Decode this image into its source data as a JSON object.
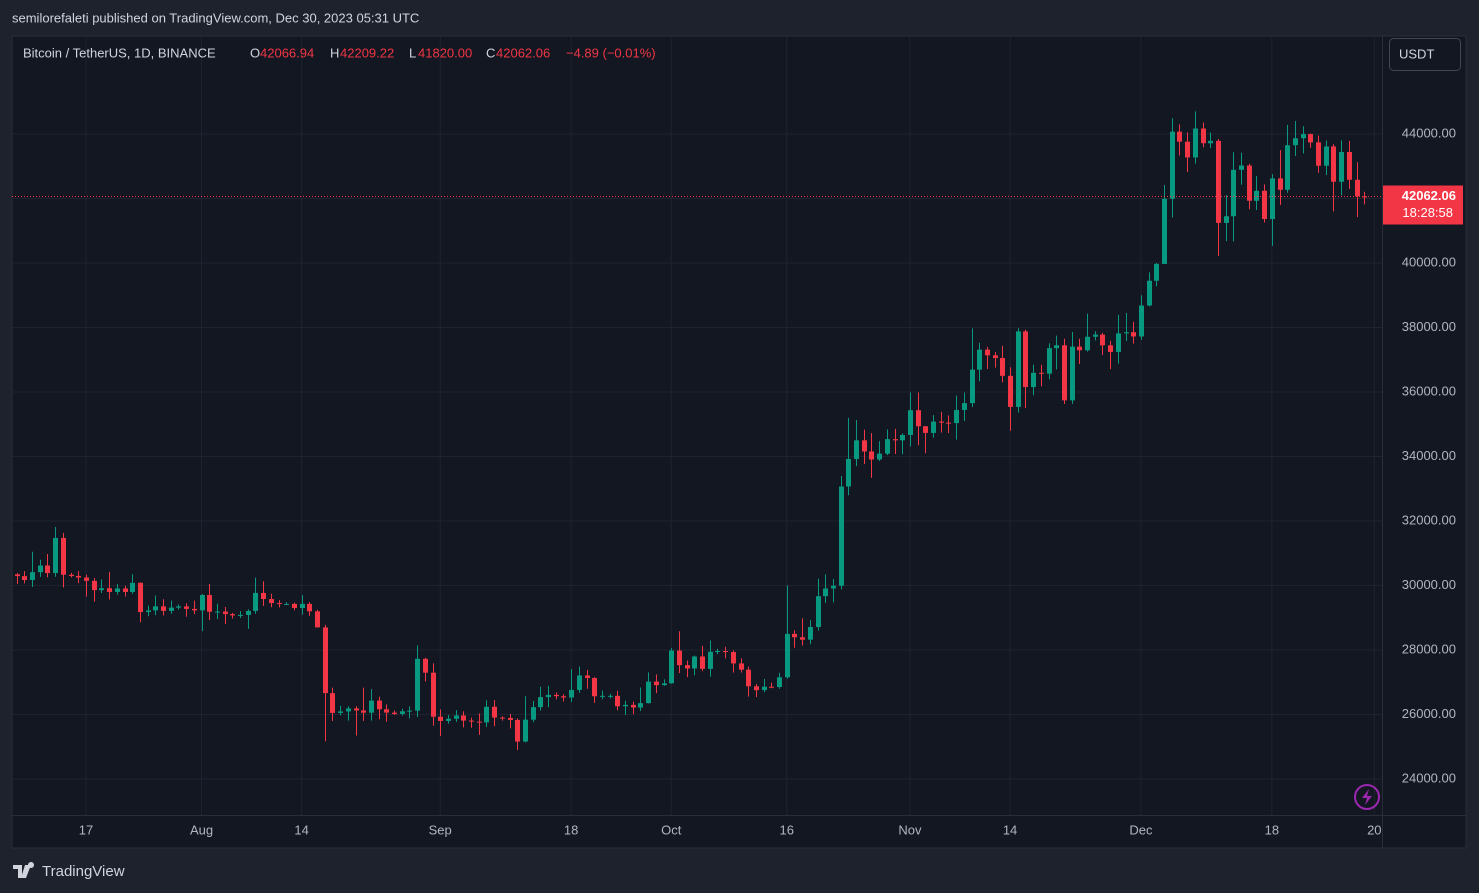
{
  "header": {
    "publisher": "semilorefaleti published on TradingView.com, Dec 30, 2023 05:31 UTC"
  },
  "chart_data": {
    "type": "candlestick",
    "title": "Bitcoin / TetherUS, 1D, BINANCE",
    "ohlc_legend": {
      "o_label": "O",
      "open": "42066.94",
      "h_label": "H",
      "high": "42209.22",
      "l_label": "L",
      "low": "41820.00",
      "c_label": "C",
      "close": "42062.06",
      "change": "−4.89 (−0.01%)"
    },
    "currency": "USDT",
    "last_price_label": "42062.06",
    "countdown": "18:28:58",
    "up_color": "#089981",
    "down_color": "#f23645",
    "grid": true,
    "xlim": [
      -0.61,
      177.3
    ],
    "xticks": [
      {
        "value": 9,
        "label": "17"
      },
      {
        "value": 24,
        "label": "Aug"
      },
      {
        "value": 37,
        "label": "14"
      },
      {
        "value": 55,
        "label": "Sep"
      },
      {
        "value": 72,
        "label": "18"
      },
      {
        "value": 85,
        "label": "Oct"
      },
      {
        "value": 100,
        "label": "16"
      },
      {
        "value": 116,
        "label": "Nov"
      },
      {
        "value": 129,
        "label": "14"
      },
      {
        "value": 146,
        "label": "Dec"
      },
      {
        "value": 163,
        "label": "18"
      },
      {
        "value": 176.3,
        "label": "20"
      }
    ],
    "ylim": [
      22884,
      47039
    ],
    "yticks": [
      {
        "value": 24000,
        "label": "24000.00"
      },
      {
        "value": 26000,
        "label": "26000.00"
      },
      {
        "value": 28000,
        "label": "28000.00"
      },
      {
        "value": 30000,
        "label": "30000.00"
      },
      {
        "value": 32000,
        "label": "32000.00"
      },
      {
        "value": 34000,
        "label": "34000.00"
      },
      {
        "value": 36000,
        "label": "36000.00"
      },
      {
        "value": 38000,
        "label": "38000.00"
      },
      {
        "value": 40000,
        "label": "40000.00"
      },
      {
        "value": 42000,
        "label": "42000.00"
      },
      {
        "value": 44000,
        "label": "44000.00"
      }
    ],
    "ohlc": [
      [
        30346,
        30384,
        30050,
        30292
      ],
      [
        30292,
        30445,
        30065,
        30171
      ],
      [
        30171,
        31045,
        29955,
        30414
      ],
      [
        30414,
        30800,
        30268,
        30620
      ],
      [
        30620,
        30977,
        30254,
        30385
      ],
      [
        30385,
        31814,
        30270,
        31476
      ],
      [
        31476,
        31630,
        29940,
        30334
      ],
      [
        30334,
        30390,
        30254,
        30297
      ],
      [
        30297,
        30445,
        30075,
        30249
      ],
      [
        30249,
        30339,
        29660,
        30145
      ],
      [
        30145,
        30233,
        29500,
        29857
      ],
      [
        29857,
        30188,
        29768,
        29917
      ],
      [
        29917,
        30417,
        29565,
        29800
      ],
      [
        29800,
        30050,
        29720,
        29909
      ],
      [
        29909,
        29987,
        29660,
        29800
      ],
      [
        29800,
        30350,
        29741,
        30083
      ],
      [
        30083,
        30100,
        28861,
        29176
      ],
      [
        29176,
        29376,
        29047,
        29228
      ],
      [
        29228,
        29690,
        29083,
        29354
      ],
      [
        29354,
        29575,
        29069,
        29212
      ],
      [
        29212,
        29530,
        29124,
        29314
      ],
      [
        29314,
        29415,
        29256,
        29352
      ],
      [
        29352,
        29448,
        29033,
        29275
      ],
      [
        29275,
        29532,
        29112,
        29230
      ],
      [
        29230,
        29737,
        28585,
        29705
      ],
      [
        29705,
        30047,
        28927,
        29186
      ],
      [
        29186,
        29433,
        28963,
        29193
      ],
      [
        29193,
        29333,
        28806,
        29113
      ],
      [
        29113,
        29152,
        28978,
        29072
      ],
      [
        29072,
        29205,
        28993,
        29088
      ],
      [
        29088,
        29259,
        28657,
        29211
      ],
      [
        29211,
        30244,
        29125,
        29770
      ],
      [
        29770,
        30131,
        29363,
        29581
      ],
      [
        29581,
        29745,
        29327,
        29455
      ],
      [
        29455,
        29547,
        29319,
        29426
      ],
      [
        29426,
        29481,
        29395,
        29430
      ],
      [
        29430,
        29469,
        29234,
        29303
      ],
      [
        29303,
        29700,
        29100,
        29430
      ],
      [
        29430,
        29486,
        29059,
        29200
      ],
      [
        29200,
        29250,
        28701,
        28701
      ],
      [
        28701,
        28783,
        25166,
        26664
      ],
      [
        26664,
        26835,
        25800,
        26049
      ],
      [
        26049,
        26271,
        25978,
        26096
      ],
      [
        26096,
        26252,
        25812,
        26189
      ],
      [
        26189,
        26260,
        25350,
        26126
      ],
      [
        26126,
        26833,
        25801,
        26056
      ],
      [
        26056,
        26786,
        25812,
        26432
      ],
      [
        26432,
        26554,
        25852,
        26163
      ],
      [
        26163,
        26315,
        25777,
        26059
      ],
      [
        26059,
        26125,
        25983,
        26017
      ],
      [
        26017,
        26180,
        25966,
        26101
      ],
      [
        26101,
        26253,
        25880,
        26120
      ],
      [
        26120,
        28142,
        25922,
        27727
      ],
      [
        27727,
        27760,
        27025,
        27297
      ],
      [
        27297,
        27588,
        25655,
        25931
      ],
      [
        25931,
        26156,
        25333,
        25800
      ],
      [
        25800,
        25984,
        25717,
        25868
      ],
      [
        25868,
        26135,
        25770,
        25969
      ],
      [
        25969,
        26100,
        25602,
        25812
      ],
      [
        25812,
        25900,
        25590,
        25779
      ],
      [
        25779,
        26030,
        25370,
        25753
      ],
      [
        25753,
        26443,
        25615,
        26240
      ],
      [
        26240,
        26447,
        25640,
        25905
      ],
      [
        25905,
        25945,
        25810,
        25895
      ],
      [
        25895,
        26020,
        25570,
        25832
      ],
      [
        25832,
        25880,
        24901,
        25162
      ],
      [
        25162,
        26567,
        25131,
        25840
      ],
      [
        25840,
        26417,
        25764,
        26228
      ],
      [
        26228,
        26860,
        26126,
        26539
      ],
      [
        26539,
        26888,
        26224,
        26608
      ],
      [
        26608,
        26681,
        26474,
        26568
      ],
      [
        26568,
        26630,
        26404,
        26527
      ],
      [
        26527,
        27409,
        26389,
        26762
      ],
      [
        26762,
        27488,
        26674,
        27211
      ],
      [
        27211,
        27379,
        26800,
        27133
      ],
      [
        27133,
        27160,
        26361,
        26567
      ],
      [
        26567,
        26743,
        26468,
        26579
      ],
      [
        26579,
        26640,
        26500,
        26579
      ],
      [
        26579,
        26735,
        26131,
        26256
      ],
      [
        26256,
        26430,
        25990,
        26298
      ],
      [
        26298,
        26400,
        26011,
        26217
      ],
      [
        26217,
        26837,
        26110,
        26352
      ],
      [
        26352,
        27308,
        26342,
        27021
      ],
      [
        27021,
        27244,
        26665,
        26911
      ],
      [
        26911,
        27089,
        26888,
        26967
      ],
      [
        26967,
        28065,
        26954,
        27983
      ],
      [
        27983,
        28580,
        27282,
        27531
      ],
      [
        27531,
        27675,
        27160,
        27429
      ],
      [
        27429,
        27830,
        27215,
        27799
      ],
      [
        27799,
        28123,
        27340,
        27416
      ],
      [
        27416,
        28295,
        27175,
        27946
      ],
      [
        27946,
        28040,
        27870,
        27968
      ],
      [
        27968,
        28100,
        27740,
        27936
      ],
      [
        27936,
        27990,
        27300,
        27584
      ],
      [
        27584,
        27735,
        27298,
        27390
      ],
      [
        27390,
        27480,
        26555,
        26875
      ],
      [
        26875,
        26947,
        26539,
        26756
      ],
      [
        26756,
        27100,
        26690,
        26862
      ],
      [
        26862,
        26989,
        26814,
        26852
      ],
      [
        26852,
        27290,
        26800,
        27154
      ],
      [
        27154,
        30000,
        27112,
        28500
      ],
      [
        28500,
        28612,
        28069,
        28395
      ],
      [
        28395,
        28982,
        28140,
        28320
      ],
      [
        28320,
        28929,
        28180,
        28713
      ],
      [
        28713,
        30208,
        28600,
        29669
      ],
      [
        29669,
        30347,
        29460,
        29909
      ],
      [
        29909,
        30200,
        29478,
        29992
      ],
      [
        29992,
        33400,
        29880,
        33069
      ],
      [
        33069,
        35198,
        32800,
        33923
      ],
      [
        33923,
        35133,
        33700,
        34502
      ],
      [
        34502,
        34832,
        33762,
        34156
      ],
      [
        34156,
        34727,
        33337,
        33909
      ],
      [
        33909,
        34474,
        33860,
        34089
      ],
      [
        34089,
        34840,
        34044,
        34538
      ],
      [
        34538,
        34856,
        34076,
        34502
      ],
      [
        34502,
        34719,
        34071,
        34667
      ],
      [
        34667,
        35985,
        34320,
        35437
      ],
      [
        35437,
        35984,
        34348,
        34938
      ],
      [
        34938,
        34938,
        34100,
        34732
      ],
      [
        34732,
        35282,
        34584,
        35082
      ],
      [
        35082,
        35387,
        34740,
        35049
      ],
      [
        35049,
        35276,
        34724,
        35037
      ],
      [
        35037,
        35891,
        34523,
        35443
      ],
      [
        35443,
        35980,
        35100,
        35655
      ],
      [
        35655,
        37972,
        35534,
        36693
      ],
      [
        36693,
        37526,
        36333,
        37313
      ],
      [
        37313,
        37399,
        36712,
        37138
      ],
      [
        37138,
        37239,
        36756,
        37054
      ],
      [
        37054,
        37430,
        36300,
        36502
      ],
      [
        36502,
        36766,
        34800,
        35537
      ],
      [
        35537,
        37980,
        35362,
        37880
      ],
      [
        37880,
        37930,
        35500,
        36154
      ],
      [
        36154,
        36850,
        35900,
        36596
      ],
      [
        36596,
        36845,
        36178,
        36568
      ],
      [
        36568,
        37510,
        36390,
        37359
      ],
      [
        37359,
        37750,
        36700,
        37448
      ],
      [
        37448,
        37650,
        35631,
        35741
      ],
      [
        35741,
        37861,
        35632,
        37408
      ],
      [
        37408,
        37653,
        36870,
        37294
      ],
      [
        37294,
        38430,
        37251,
        37713
      ],
      [
        37713,
        37888,
        37600,
        37780
      ],
      [
        37780,
        37833,
        37150,
        37447
      ],
      [
        37447,
        37590,
        36708,
        37242
      ],
      [
        37242,
        38390,
        36880,
        37818
      ],
      [
        37818,
        38450,
        37580,
        37854
      ],
      [
        37854,
        38178,
        37500,
        37723
      ],
      [
        37723,
        38999,
        37615,
        38682
      ],
      [
        38682,
        39710,
        38650,
        39450
      ],
      [
        39450,
        40000,
        39280,
        39972
      ],
      [
        39972,
        42420,
        39972,
        41991
      ],
      [
        41991,
        44488,
        41414,
        44073
      ],
      [
        44073,
        44300,
        43335,
        43762
      ],
      [
        43762,
        44049,
        42821,
        43273
      ],
      [
        43273,
        44700,
        43081,
        44170
      ],
      [
        44170,
        44358,
        43584,
        43713
      ],
      [
        43713,
        44044,
        43564,
        43789
      ],
      [
        43789,
        43845,
        40222,
        41243
      ],
      [
        41243,
        42104,
        40680,
        41450
      ],
      [
        41450,
        43433,
        40672,
        42890
      ],
      [
        42890,
        43420,
        42426,
        43023
      ],
      [
        43023,
        43079,
        41666,
        41929
      ],
      [
        41929,
        42700,
        41644,
        42240
      ],
      [
        42240,
        42437,
        41252,
        41364
      ],
      [
        41364,
        42756,
        40530,
        42623
      ],
      [
        42623,
        43500,
        41800,
        42270
      ],
      [
        42270,
        44283,
        42180,
        43652
      ],
      [
        43652,
        44400,
        43314,
        43869
      ],
      [
        43869,
        44240,
        43400,
        43997
      ],
      [
        43997,
        44015,
        43575,
        43740
      ],
      [
        43740,
        43950,
        42800,
        43016
      ],
      [
        43016,
        43800,
        42730,
        43614
      ],
      [
        43614,
        43683,
        41600,
        42520
      ],
      [
        42520,
        43804,
        42100,
        43442
      ],
      [
        43442,
        43787,
        42300,
        42581
      ],
      [
        42581,
        43124,
        41424,
        42066
      ],
      [
        42066.94,
        42209.22,
        41820,
        42062.06
      ]
    ]
  },
  "footer": {
    "brand": "TradingView"
  }
}
